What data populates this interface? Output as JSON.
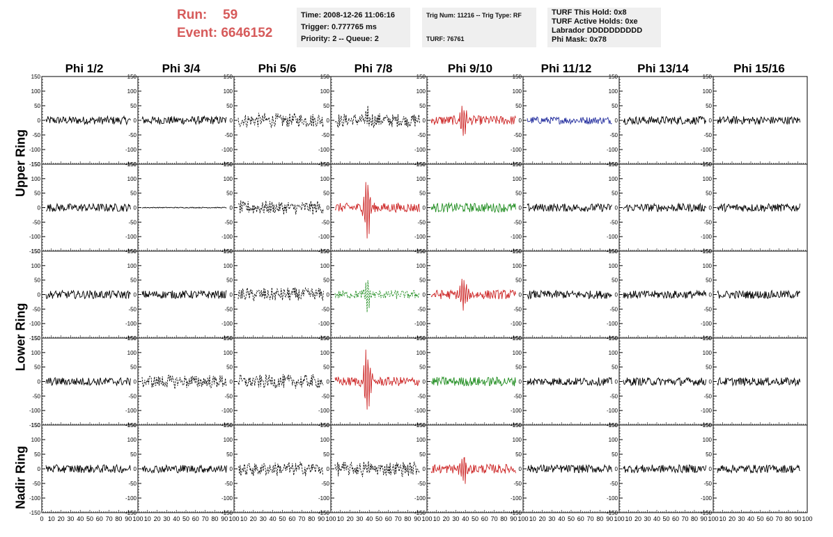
{
  "run_label": "Run:",
  "run_value": "59",
  "event_label": "Event:",
  "event_value": "6646152",
  "info_box_1": [
    "Time: 2008-12-26 11:06:16",
    "Trigger: 0.777765 ms",
    "Priority: 2 -- Queue: 2"
  ],
  "info_box_2": [
    "Trig Num: 11216 -- Trig Type: RF",
    "",
    "TURF: 76761"
  ],
  "info_box_3": [
    "TURF This Hold: 0x8",
    "TURF Active Holds: 0xe",
    "Labrador DDDDDDDDDD",
    "Phi Mask: 0x78"
  ],
  "columns": [
    "Phi 1/2",
    "Phi 3/4",
    "Phi 5/6",
    "Phi 7/8",
    "Phi 9/10",
    "Phi 11/12",
    "Phi 13/14",
    "Phi 15/16"
  ],
  "rings": [
    "Upper Ring",
    "Lower Ring",
    "Nadir Ring"
  ],
  "colors": {
    "run_text": "#d65a5a",
    "info_bg": "#efefef",
    "black": "#000000",
    "red": "#cc2222",
    "green": "#1e8c1e",
    "blue": "#1f2a9c"
  },
  "chart_data": {
    "type": "line",
    "xlim": [
      0,
      100
    ],
    "ylim": [
      -150,
      150
    ],
    "y_ticks": [
      150,
      100,
      50,
      0,
      -50,
      -100,
      -150
    ],
    "x_tick_labels": [
      "0",
      "10",
      "20",
      "30",
      "40",
      "50",
      "60",
      "70",
      "80",
      "90",
      "100"
    ],
    "panels": [
      [
        "black",
        "black",
        "black-dashed",
        "black-dashed",
        "red",
        "blue",
        "black",
        "black"
      ],
      [
        "black",
        "black-flat",
        "black-dashed",
        "red",
        "green",
        "black",
        "black",
        "black"
      ],
      [
        "black",
        "black",
        "black-dashed",
        "green-dashed",
        "red",
        "black",
        "black",
        "black"
      ],
      [
        "black",
        "black-dashed",
        "black-dashed",
        "red",
        "green",
        "black",
        "black",
        "black"
      ],
      [
        "black",
        "black",
        "black-dashed",
        "black-dashed",
        "red",
        "black",
        "black",
        "black"
      ]
    ]
  }
}
